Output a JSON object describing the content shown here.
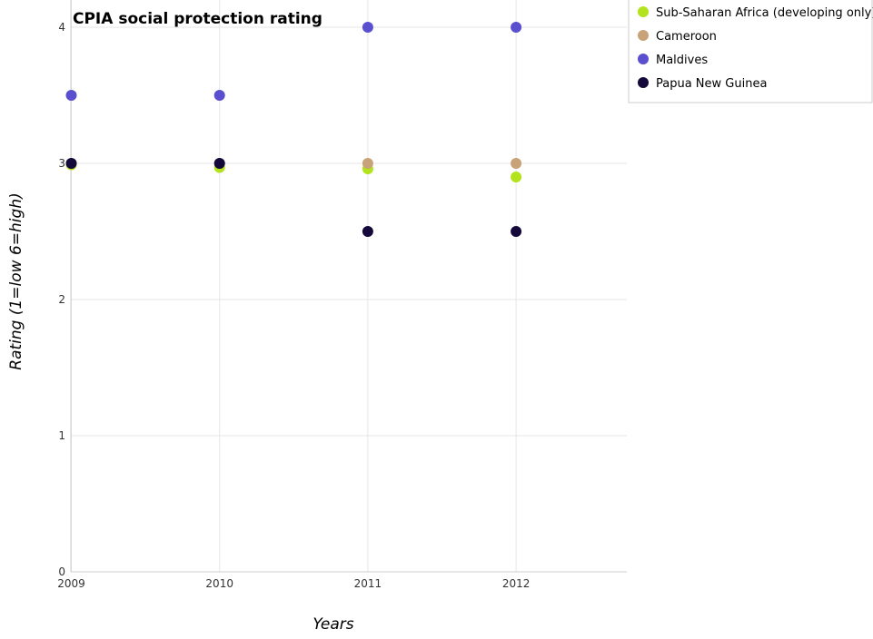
{
  "chart_data": {
    "type": "scatter",
    "title": "CPIA social protection rating",
    "xlabel": "Years",
    "ylabel": "Rating (1=low 6=high)",
    "categories": [
      "2009",
      "2010",
      "2011",
      "2012"
    ],
    "ylim": [
      0,
      4.2
    ],
    "yticks": [
      0,
      1,
      2,
      3,
      4
    ],
    "grid": true,
    "legend_position": "top-right",
    "series": [
      {
        "name": "Sub-Saharan Africa (developing only)",
        "color": "#b2e31c",
        "values": [
          2.99,
          2.97,
          2.96,
          2.9
        ]
      },
      {
        "name": "Cameroon",
        "color": "#c8a37a",
        "values": [
          3.0,
          3.0,
          3.0,
          3.0
        ]
      },
      {
        "name": "Maldives",
        "color": "#5a4fcf",
        "values": [
          3.5,
          3.5,
          4.0,
          4.0
        ]
      },
      {
        "name": "Papua New Guinea",
        "color": "#14093a",
        "values": [
          3.0,
          3.0,
          2.5,
          2.5
        ]
      }
    ]
  }
}
